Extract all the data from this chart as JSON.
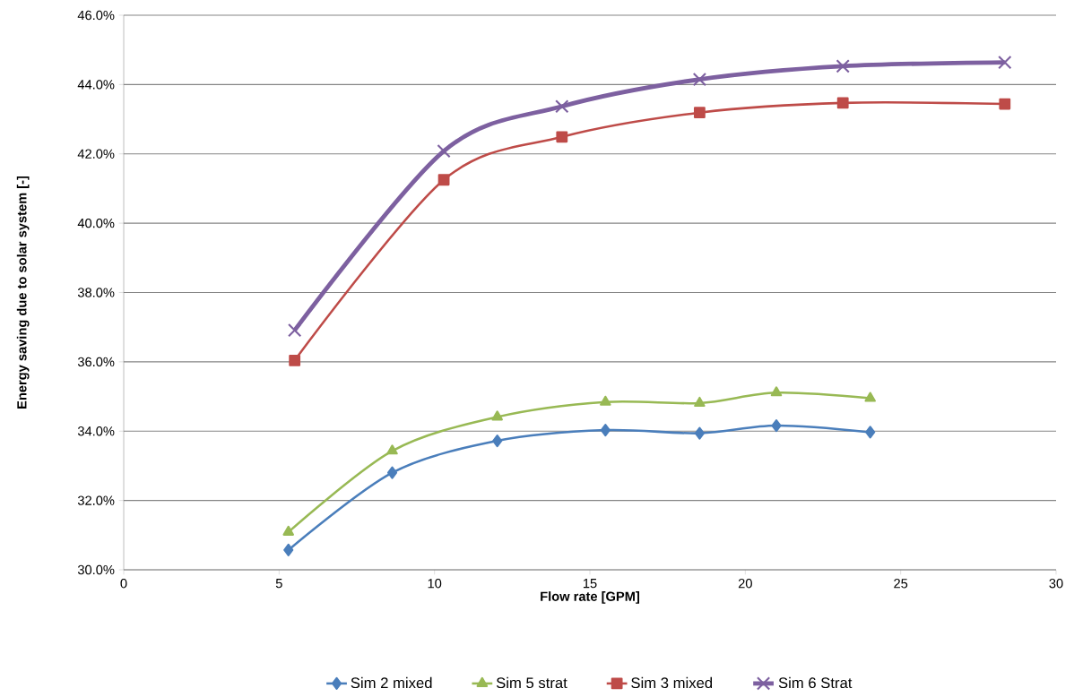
{
  "chart_data": {
    "type": "line",
    "xlabel": "Flow rate [GPM]",
    "ylabel": "Energy saving due to solar system [-]",
    "xlim": [
      0,
      30
    ],
    "xticks": [
      0,
      5,
      10,
      15,
      20,
      25,
      30
    ],
    "ylim": [
      30,
      46
    ],
    "yticks": [
      {
        "value": 30,
        "label": "30.0%"
      },
      {
        "value": 32,
        "label": "32.0%"
      },
      {
        "value": 34,
        "label": "34.0%"
      },
      {
        "value": 36,
        "label": "36.0%"
      },
      {
        "value": 38,
        "label": "38.0%"
      },
      {
        "value": 40,
        "label": "40.0%"
      },
      {
        "value": 42,
        "label": "42.0%"
      },
      {
        "value": 44,
        "label": "44.0%"
      },
      {
        "value": 46,
        "label": "46.0%"
      }
    ],
    "grid": "y",
    "legend": "bottom",
    "line_style": "solid",
    "series": [
      {
        "name": "Sim 2 mixed",
        "color": "#4a7ebb",
        "marker": "diamond",
        "x": [
          5.3,
          8.64,
          12.02,
          15.5,
          18.53,
          21.0,
          24.02
        ],
        "values": [
          30.57,
          32.8,
          33.72,
          34.03,
          33.94,
          34.16,
          33.97
        ]
      },
      {
        "name": "Sim 5 strat",
        "color": "#98b954",
        "marker": "triangle",
        "x": [
          5.3,
          8.64,
          12.02,
          15.5,
          18.53,
          21.0,
          24.02
        ],
        "values": [
          31.09,
          33.43,
          34.41,
          34.84,
          34.81,
          35.11,
          34.95
        ]
      },
      {
        "name": "Sim 3 mixed",
        "color": "#be4b48",
        "marker": "square",
        "x": [
          5.5,
          10.3,
          14.1,
          18.53,
          23.14,
          28.35
        ],
        "values": [
          36.04,
          41.25,
          42.49,
          43.19,
          43.47,
          43.44
        ]
      },
      {
        "name": "Sim 6 Strat",
        "color": "#7d60a0",
        "marker": "cross",
        "x": [
          5.5,
          10.3,
          14.1,
          18.53,
          23.14,
          28.35
        ],
        "values": [
          36.91,
          42.08,
          43.37,
          44.15,
          44.53,
          44.64
        ]
      }
    ]
  }
}
